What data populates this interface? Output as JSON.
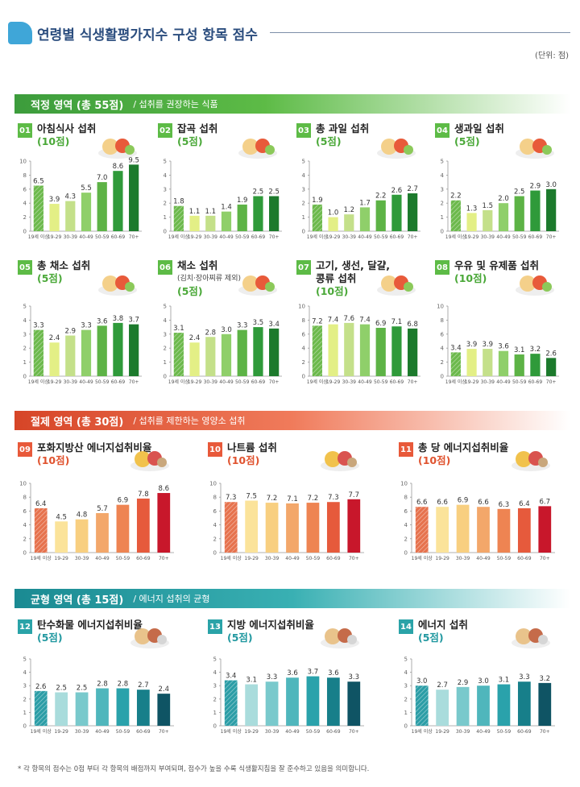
{
  "header": {
    "title": "연령별 식생활평가지수 구성 항목 점수",
    "unit": "(단위: 점)"
  },
  "sections": {
    "adequacy": {
      "title": "적정 영역 (총 55점)",
      "subtitle": "/  섭취를 권장하는 식품",
      "color": "#5dbb46"
    },
    "moderation": {
      "title": "절제 영역 (총 30점)",
      "subtitle": "/  섭취를 제한하는 영양소 섭취",
      "color": "#e8593a"
    },
    "balance": {
      "title": "균형 영역 (총 15점)",
      "subtitle": "/  에너지 섭취의 균형",
      "color": "#2aa3a8"
    }
  },
  "footnote": "* 각 항목의 점수는 0점 부터 각 항목의 배점까지 부여되며, 점수가 높을 수록 식생활지침을 잘 준수하고 있음을 의미합니다.",
  "palettes": {
    "green": [
      "#6cb94c",
      "#e3ef86",
      "#c4e08a",
      "#8fcf6a",
      "#5db346",
      "#2f9a3a",
      "#1c7a2c"
    ],
    "red": [
      "#e6724d",
      "#fbe39a",
      "#f8cf80",
      "#f3a76a",
      "#ee8452",
      "#e65a3c",
      "#c8172b"
    ],
    "teal": [
      "#2b9da6",
      "#a9dcdc",
      "#79c9cc",
      "#4fb6bc",
      "#2aa2ab",
      "#177f8a",
      "#0f5464"
    ]
  },
  "chart_data": [
    {
      "id": "01",
      "type": "bar",
      "name": "아침식사 섭취",
      "score": "(10점)",
      "ylim": [
        0,
        10
      ],
      "yticks": [
        "0",
        "2",
        "4",
        "6",
        "8",
        "10"
      ],
      "palette": "green",
      "categories": [
        "19세 이상",
        "19-29",
        "30-39",
        "40-49",
        "50-59",
        "60-69",
        "70+"
      ],
      "values": [
        6.5,
        3.9,
        4.3,
        5.5,
        7.0,
        8.6,
        9.5
      ],
      "labels": [
        "6.5",
        "3.9",
        "4.3",
        "5.5",
        "7.0",
        "8.6",
        "9.5"
      ]
    },
    {
      "id": "02",
      "type": "bar",
      "name": "잡곡 섭취",
      "score": "(5점)",
      "ylim": [
        0,
        5
      ],
      "yticks": [
        "0",
        "1",
        "2",
        "3",
        "4",
        "5"
      ],
      "palette": "green",
      "categories": [
        "19세 이상",
        "19-29",
        "30-39",
        "40-49",
        "50-59",
        "60-69",
        "70+"
      ],
      "values": [
        1.8,
        1.1,
        1.1,
        1.4,
        1.9,
        2.5,
        2.5
      ],
      "labels": [
        "1.8",
        "1.1",
        "1.1",
        "1.4",
        "1.9",
        "2.5",
        "2.5"
      ]
    },
    {
      "id": "03",
      "type": "bar",
      "name": "총 과일 섭취",
      "score": "(5점)",
      "ylim": [
        0,
        5
      ],
      "yticks": [
        "0",
        "1",
        "2",
        "3",
        "4",
        "5"
      ],
      "palette": "green",
      "categories": [
        "19세 이상",
        "19-29",
        "30-39",
        "40-49",
        "50-59",
        "60-69",
        "70+"
      ],
      "values": [
        1.9,
        1.0,
        1.2,
        1.7,
        2.2,
        2.6,
        2.7
      ],
      "labels": [
        "1.9",
        "1.0",
        "1.2",
        "1.7",
        "2.2",
        "2.6",
        "2.7"
      ]
    },
    {
      "id": "04",
      "type": "bar",
      "name": "생과일 섭취",
      "score": "(5점)",
      "ylim": [
        0,
        5
      ],
      "yticks": [
        "0",
        "1",
        "2",
        "3",
        "4",
        "5"
      ],
      "palette": "green",
      "categories": [
        "19세 이상",
        "19-29",
        "30-39",
        "40-49",
        "50-59",
        "60-69",
        "70+"
      ],
      "values": [
        2.2,
        1.3,
        1.5,
        2.0,
        2.5,
        2.9,
        3.0
      ],
      "labels": [
        "2.2",
        "1.3",
        "1.5",
        "2.0",
        "2.5",
        "2.9",
        "3.0"
      ]
    },
    {
      "id": "05",
      "type": "bar",
      "name": "총 채소 섭취",
      "score": "(5점)",
      "ylim": [
        0,
        5
      ],
      "yticks": [
        "0",
        "1",
        "2",
        "3",
        "4",
        "5"
      ],
      "palette": "green",
      "categories": [
        "19세 이상",
        "19-29",
        "30-39",
        "40-49",
        "50-59",
        "60-69",
        "70+"
      ],
      "values": [
        3.3,
        2.4,
        2.9,
        3.3,
        3.6,
        3.8,
        3.7
      ],
      "labels": [
        "3.3",
        "2.4",
        "2.9",
        "3.3",
        "3.6",
        "3.8",
        "3.7"
      ]
    },
    {
      "id": "06",
      "type": "bar",
      "name": "채소 섭취",
      "note": "(김치·장아찌류 제외)",
      "score": "(5점)",
      "ylim": [
        0,
        5
      ],
      "yticks": [
        "0",
        "1",
        "2",
        "3",
        "4",
        "5"
      ],
      "palette": "green",
      "categories": [
        "19세 이상",
        "19-29",
        "30-39",
        "40-49",
        "50-59",
        "60-69",
        "70+"
      ],
      "values": [
        3.1,
        2.4,
        2.8,
        3.0,
        3.3,
        3.5,
        3.4
      ],
      "labels": [
        "3.1",
        "2.4",
        "2.8",
        "3.0",
        "3.3",
        "3.5",
        "3.4"
      ]
    },
    {
      "id": "07",
      "type": "bar",
      "name": "고기, 생선, 달걀,",
      "name2": "콩류 섭취",
      "score": "(10점)",
      "ylim": [
        0,
        10
      ],
      "yticks": [
        "0",
        "2",
        "4",
        "6",
        "8",
        "10"
      ],
      "palette": "green",
      "categories": [
        "19세 이상",
        "19-29",
        "30-39",
        "40-49",
        "50-59",
        "60-69",
        "70+"
      ],
      "values": [
        7.2,
        7.4,
        7.6,
        7.4,
        6.9,
        7.1,
        6.8
      ],
      "labels": [
        "7.2",
        "7.4",
        "7.6",
        "7.4",
        "6.9",
        "7.1",
        "6.8"
      ]
    },
    {
      "id": "08",
      "type": "bar",
      "name": "우유 및 유제품 섭취",
      "score": "(10점)",
      "ylim": [
        0,
        10
      ],
      "yticks": [
        "0",
        "2",
        "4",
        "6",
        "8",
        "10"
      ],
      "palette": "green",
      "categories": [
        "19세 이상",
        "19-29",
        "30-39",
        "40-49",
        "50-59",
        "60-69",
        "70+"
      ],
      "values": [
        3.4,
        3.9,
        3.9,
        3.6,
        3.1,
        3.2,
        2.6
      ],
      "labels": [
        "3.4",
        "3.9",
        "3.9",
        "3.6",
        "3.1",
        "3.2",
        "2.6"
      ]
    },
    {
      "id": "09",
      "type": "bar",
      "name": "포화지방산 에너지섭취비율",
      "score": "(10점)",
      "ylim": [
        0,
        10
      ],
      "yticks": [
        "0",
        "2",
        "4",
        "6",
        "8",
        "10"
      ],
      "palette": "red",
      "categories": [
        "19세 이상",
        "19-29",
        "30-39",
        "40-49",
        "50-59",
        "60-69",
        "70+"
      ],
      "values": [
        6.4,
        4.5,
        4.8,
        5.7,
        6.9,
        7.8,
        8.6
      ],
      "labels": [
        "6.4",
        "4.5",
        "4.8",
        "5.7",
        "6.9",
        "7.8",
        "8.6"
      ]
    },
    {
      "id": "10",
      "type": "bar",
      "name": "나트륨 섭취",
      "score": "(10점)",
      "ylim": [
        0,
        10
      ],
      "yticks": [
        "0",
        "2",
        "4",
        "6",
        "8",
        "10"
      ],
      "palette": "red",
      "categories": [
        "19세 이상",
        "19-29",
        "30-39",
        "40-49",
        "50-59",
        "60-69",
        "70+"
      ],
      "values": [
        7.3,
        7.5,
        7.2,
        7.1,
        7.2,
        7.3,
        7.7
      ],
      "labels": [
        "7.3",
        "7.5",
        "7.2",
        "7.1",
        "7.2",
        "7.3",
        "7.7"
      ]
    },
    {
      "id": "11",
      "type": "bar",
      "name": "총 당 에너지섭취비율",
      "score": "(10점)",
      "ylim": [
        0,
        10
      ],
      "yticks": [
        "0",
        "2",
        "4",
        "6",
        "8",
        "10"
      ],
      "palette": "red",
      "categories": [
        "19세 이상",
        "19-29",
        "30-39",
        "40-49",
        "50-59",
        "60-69",
        "70+"
      ],
      "values": [
        6.6,
        6.6,
        6.9,
        6.6,
        6.3,
        6.4,
        6.7
      ],
      "labels": [
        "6.6",
        "6.6",
        "6.9",
        "6.6",
        "6.3",
        "6.4",
        "6.7"
      ]
    },
    {
      "id": "12",
      "type": "bar",
      "name": "탄수화물 에너지섭취비율",
      "score": "(5점)",
      "ylim": [
        0,
        5
      ],
      "yticks": [
        "0",
        "1",
        "2",
        "3",
        "4",
        "5"
      ],
      "palette": "teal",
      "categories": [
        "19세 이상",
        "19-29",
        "30-39",
        "40-49",
        "50-59",
        "60-69",
        "70+"
      ],
      "values": [
        2.6,
        2.5,
        2.5,
        2.8,
        2.8,
        2.7,
        2.4
      ],
      "labels": [
        "2.6",
        "2.5",
        "2.5",
        "2.8",
        "2.8",
        "2.7",
        "2.4"
      ]
    },
    {
      "id": "13",
      "type": "bar",
      "name": "지방 에너지섭취비율",
      "score": "(5점)",
      "ylim": [
        0,
        5
      ],
      "yticks": [
        "0",
        "1",
        "2",
        "3",
        "4",
        "5"
      ],
      "palette": "teal",
      "categories": [
        "19세 이상",
        "19-29",
        "30-39",
        "40-49",
        "50-59",
        "60-69",
        "70+"
      ],
      "values": [
        3.4,
        3.1,
        3.3,
        3.6,
        3.7,
        3.6,
        3.3
      ],
      "labels": [
        "3.4",
        "3.1",
        "3.3",
        "3.6",
        "3.7",
        "3.6",
        "3.3"
      ]
    },
    {
      "id": "14",
      "type": "bar",
      "name": "에너지 섭취",
      "score": "(5점)",
      "ylim": [
        0,
        5
      ],
      "yticks": [
        "0",
        "1",
        "2",
        "3",
        "4",
        "5"
      ],
      "palette": "teal",
      "categories": [
        "19세 이상",
        "19-29",
        "30-39",
        "40-49",
        "50-59",
        "60-69",
        "70+"
      ],
      "values": [
        3.0,
        2.7,
        2.9,
        3.0,
        3.1,
        3.3,
        3.2
      ],
      "labels": [
        "3.0",
        "2.7",
        "2.9",
        "3.0",
        "3.1",
        "3.3",
        "3.2"
      ]
    }
  ]
}
